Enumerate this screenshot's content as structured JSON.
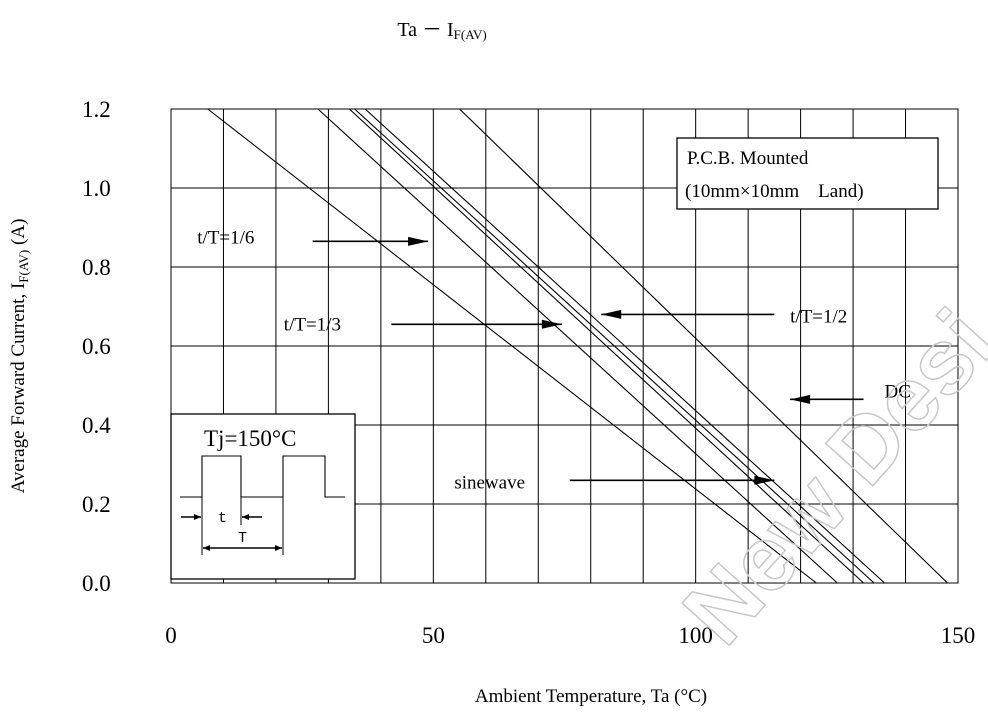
{
  "chart_data": {
    "type": "line",
    "title": "Ta － I",
    "title_sub": "F(AV)",
    "xlabel": "Ambient Temperature, Ta (°C)",
    "ylabel": "Average Forward Current, I",
    "ylabel_sub": "F(AV)",
    "ylabel_suffix": " (A)",
    "xlim": [
      0,
      150
    ],
    "ylim": [
      0,
      1.2
    ],
    "x_ticks": [
      "0",
      "50",
      "100",
      "150"
    ],
    "x_tick_values": [
      0,
      50,
      100,
      150
    ],
    "y_ticks": [
      "0.0",
      "0.2",
      "0.4",
      "0.6",
      "0.8",
      "1.0",
      "1.2"
    ],
    "y_tick_values": [
      0,
      0.2,
      0.4,
      0.6,
      0.8,
      1.0,
      1.2
    ],
    "x_grid_step": 10,
    "y_grid_step": 0.2,
    "grid": true,
    "series": [
      {
        "name": "t/T=1/6",
        "points": [
          [
            7,
            1.2
          ],
          [
            123,
            0.0
          ]
        ]
      },
      {
        "name": "sinewave",
        "points": [
          [
            28,
            1.2
          ],
          [
            127,
            0.0
          ]
        ]
      },
      {
        "name": "t/T=1/3",
        "points": [
          [
            34,
            1.2
          ],
          [
            132,
            0.0
          ]
        ]
      },
      {
        "name": "",
        "points": [
          [
            35,
            1.2
          ],
          [
            134,
            0.0
          ]
        ]
      },
      {
        "name": "t/T=1/2",
        "points": [
          [
            37,
            1.2
          ],
          [
            136,
            0.0
          ]
        ]
      },
      {
        "name": "DC",
        "points": [
          [
            55,
            1.2
          ],
          [
            148,
            0.0
          ]
        ]
      }
    ],
    "annotations": [
      {
        "text": "t/T=1/6",
        "text_at": [
          5,
          0.875
        ],
        "arrow_from": [
          27,
          0.865
        ],
        "arrow_to": [
          49,
          0.865
        ]
      },
      {
        "text": "t/T=1/3",
        "text_at": [
          21.5,
          0.655
        ],
        "arrow_from": [
          42,
          0.655
        ],
        "arrow_to": [
          74.5,
          0.655
        ]
      },
      {
        "text": "t/T=1/2",
        "text_at": [
          118,
          0.675
        ],
        "arrow_from": [
          115,
          0.68
        ],
        "arrow_to": [
          82,
          0.68
        ]
      },
      {
        "text": "DC",
        "text_at": [
          136,
          0.485
        ],
        "arrow_from": [
          132,
          0.465
        ],
        "arrow_to": [
          118,
          0.465
        ]
      },
      {
        "text": "sinewave",
        "text_at": [
          54,
          0.255
        ],
        "arrow_from": [
          76,
          0.26
        ],
        "arrow_to": [
          115,
          0.26
        ]
      }
    ],
    "legend_box": {
      "line1": "P.C.B. Mounted",
      "line2": "(10mm×10mm　Land)",
      "placement": "top-right"
    },
    "inset": {
      "label": "Tj=150°C",
      "t_label": "t",
      "T_label": "T",
      "placement": "bottom-left"
    }
  }
}
